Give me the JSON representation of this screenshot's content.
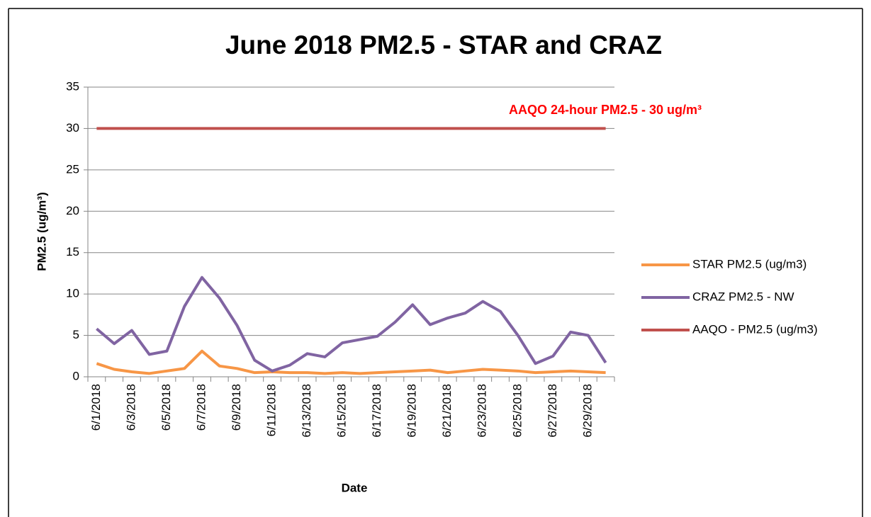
{
  "chart_data": {
    "type": "line",
    "title": "June 2018 PM2.5 - STAR and CRAZ",
    "x_label": "Date",
    "y_label": "PM2.5 (ug/m³)",
    "annotation": "AAQO 24-hour PM2.5 - 30 ug/m³",
    "categories": [
      "6/1/2018",
      null,
      "6/3/2018",
      null,
      "6/5/2018",
      null,
      "6/7/2018",
      null,
      "6/9/2018",
      null,
      "6/11/2018",
      null,
      "6/13/2018",
      null,
      "6/15/2018",
      null,
      "6/17/2018",
      null,
      "6/19/2018",
      null,
      "6/21/2018",
      null,
      "6/23/2018",
      null,
      "6/25/2018",
      null,
      "6/27/2018",
      null,
      "6/29/2018",
      null
    ],
    "series": [
      {
        "name": "STAR PM2.5 (ug/m3)",
        "color": "#f79646",
        "values": [
          1.6,
          0.9,
          0.6,
          0.4,
          0.7,
          1.0,
          3.1,
          1.3,
          1.0,
          0.5,
          0.6,
          0.5,
          0.5,
          0.4,
          0.5,
          0.4,
          0.5,
          0.6,
          0.7,
          0.8,
          0.5,
          0.7,
          0.9,
          0.8,
          0.7,
          0.5,
          0.6,
          0.7,
          0.6,
          0.5
        ]
      },
      {
        "name": "CRAZ PM2.5 - NW",
        "color": "#8064a2",
        "values": [
          5.8,
          4.0,
          5.6,
          2.7,
          3.1,
          8.5,
          12.0,
          9.5,
          6.2,
          2.0,
          0.7,
          1.4,
          2.8,
          2.4,
          4.1,
          4.5,
          4.9,
          6.6,
          8.7,
          6.3,
          7.1,
          7.7,
          9.1,
          7.9,
          5.0,
          1.6,
          2.5,
          5.4,
          5.0,
          1.7
        ]
      },
      {
        "name": "AAQO - PM2.5 (ug/m3)",
        "color": "#c0504d",
        "values": [
          30,
          30,
          30,
          30,
          30,
          30,
          30,
          30,
          30,
          30,
          30,
          30,
          30,
          30,
          30,
          30,
          30,
          30,
          30,
          30,
          30,
          30,
          30,
          30,
          30,
          30,
          30,
          30,
          30,
          30
        ]
      }
    ],
    "ylim": [
      0,
      35
    ],
    "yticks": [
      0,
      5,
      10,
      15,
      20,
      25,
      30,
      35
    ],
    "grid": true,
    "legend": "right"
  }
}
